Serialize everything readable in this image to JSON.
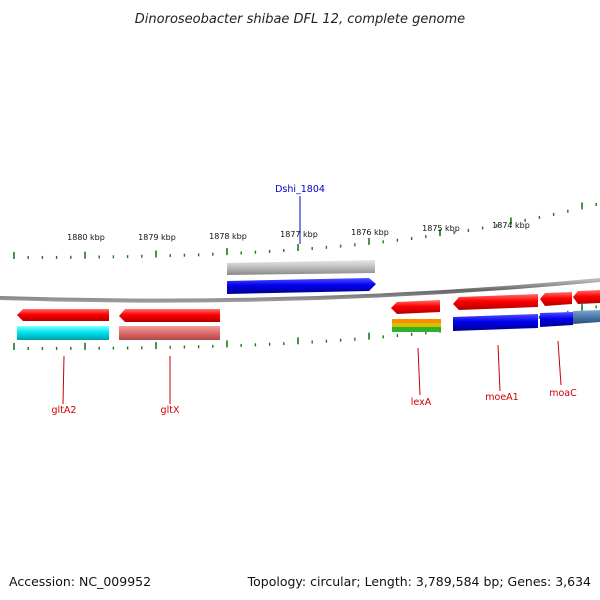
{
  "title": "Dinoroseobacter shibae DFL 12, complete genome",
  "footer": {
    "accession": "Accession: NC_009952",
    "summary": "Topology: circular; Length: 3,789,584 bp; Genes: 3,634"
  },
  "ruler": {
    "labels": [
      "1880 kbp",
      "1879 kbp",
      "1878 kbp",
      "1877 kbp",
      "1876 kbp",
      "1875 kbp",
      "1874 kbp"
    ]
  },
  "genes": {
    "dshi1804": "Dshi_1804",
    "gltA2": "gltA2",
    "gltX": "gltX",
    "lexA": "lexA",
    "moeA1": "moeA1",
    "moaC": "moaC"
  },
  "colors": {
    "forward_gene": "#ff0000",
    "reverse_gene": "#ff0000",
    "cds_blue": "#0000ee",
    "cds_cyan": "#00e5ee",
    "cds_pink": "#e07070",
    "cds_gray": "#bbbbbb",
    "label_blue": "#0000cc",
    "label_red": "#cc0000",
    "tick_green": "#1a7a1a",
    "backbone": "#777777"
  }
}
